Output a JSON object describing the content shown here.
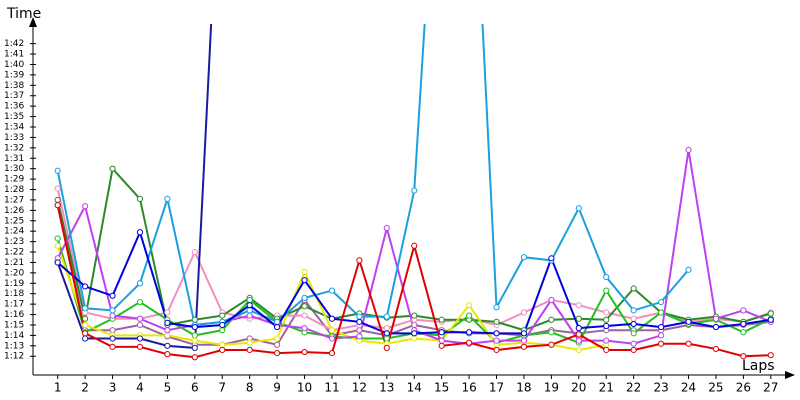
{
  "chart_data": {
    "type": "line",
    "y_title": "Time",
    "x_title": "Laps",
    "x": [
      1,
      2,
      3,
      4,
      5,
      6,
      7,
      8,
      9,
      10,
      11,
      12,
      13,
      14,
      15,
      16,
      17,
      18,
      19,
      20,
      21,
      22,
      23,
      24,
      25,
      26,
      27
    ],
    "xlim": [
      0.1,
      27.7
    ],
    "xticks": [
      1,
      2,
      3,
      4,
      5,
      6,
      7,
      8,
      9,
      10,
      11,
      12,
      13,
      14,
      15,
      16,
      17,
      18,
      19,
      20,
      21,
      22,
      23,
      24,
      25,
      26,
      27
    ],
    "ylim": [
      70.2,
      103.5
    ],
    "yticks": [
      {
        "value": 72,
        "label": "1:12"
      },
      {
        "value": 73,
        "label": "1:13"
      },
      {
        "value": 74,
        "label": "1:14"
      },
      {
        "value": 75,
        "label": "1:15"
      },
      {
        "value": 76,
        "label": "1:16"
      },
      {
        "value": 77,
        "label": "1:17"
      },
      {
        "value": 78,
        "label": "1:18"
      },
      {
        "value": 79,
        "label": "1:19"
      },
      {
        "value": 80,
        "label": "1:20"
      },
      {
        "value": 81,
        "label": "1:21"
      },
      {
        "value": 82,
        "label": "1:22"
      },
      {
        "value": 83,
        "label": "1:23"
      },
      {
        "value": 84,
        "label": "1:24"
      },
      {
        "value": 85,
        "label": "1:25"
      },
      {
        "value": 86,
        "label": "1:26"
      },
      {
        "value": 87,
        "label": "1:27"
      },
      {
        "value": 88,
        "label": "1:28"
      },
      {
        "value": 89,
        "label": "1:29"
      },
      {
        "value": 90,
        "label": "1:30"
      },
      {
        "value": 91,
        "label": "1:31"
      },
      {
        "value": 92,
        "label": "1:32"
      },
      {
        "value": 93,
        "label": "1:33"
      },
      {
        "value": 94,
        "label": "1:34"
      },
      {
        "value": 95,
        "label": "1:35"
      },
      {
        "value": 96,
        "label": "1:36"
      },
      {
        "value": 97,
        "label": "1:37"
      },
      {
        "value": 98,
        "label": "1:38"
      },
      {
        "value": 99,
        "label": "1:39"
      },
      {
        "value": 100,
        "label": "1:40"
      },
      {
        "value": 101,
        "label": "1:41"
      },
      {
        "value": 102,
        "label": "1:42"
      }
    ],
    "series": [
      {
        "color": "#a060a0",
        "values": [
          86.5,
          74.5,
          74.5,
          75.0,
          73.9,
          73.1,
          73.1,
          73.7,
          73.1,
          77.4,
          74.0,
          74.5,
          74.0,
          75.0,
          74.5,
          74.2,
          74.2,
          74.0,
          74.5,
          74.2,
          74.5,
          74.5,
          74.5,
          75.0,
          74.8,
          75.0,
          75.3
        ]
      },
      {
        "color": "#f090c0",
        "values": [
          88.1,
          76.2,
          75.6,
          75.6,
          76.2,
          82.0,
          76.2,
          75.6,
          75.9,
          75.9,
          74.5,
          75.0,
          74.7,
          75.5,
          75.3,
          75.6,
          75.0,
          76.2,
          77.4,
          76.9,
          76.2,
          75.6,
          76.2,
          75.3,
          75.6,
          75.3,
          76.2
        ]
      },
      {
        "color": "#2a8a2a",
        "values": [
          87.0,
          75.6,
          90.0,
          87.1,
          75.0,
          75.5,
          75.9,
          77.6,
          75.6,
          76.8,
          75.6,
          76.1,
          75.7,
          75.9,
          75.5,
          75.5,
          75.3,
          74.5,
          75.5,
          75.6,
          75.5,
          78.5,
          76.2,
          75.5,
          75.8,
          75.3,
          76.1
        ]
      },
      {
        "color": "#20c020",
        "values": [
          83.3,
          74.3,
          75.6,
          77.2,
          75.5,
          74.0,
          74.5,
          77.4,
          75.3,
          74.3,
          73.9,
          73.7,
          73.7,
          74.2,
          74.0,
          75.9,
          73.3,
          74.0,
          74.3,
          73.3,
          78.3,
          74.2,
          76.2,
          75.1,
          75.5,
          74.3,
          75.6
        ]
      },
      {
        "color": "#e8e800",
        "values": [
          82.6,
          75.0,
          74.0,
          74.0,
          74.0,
          73.5,
          73.1,
          73.3,
          73.7,
          80.1,
          74.5,
          73.5,
          73.2,
          73.7,
          73.5,
          76.9,
          73.1,
          73.3,
          73.1,
          72.6,
          73.1,
          null,
          null,
          null,
          null,
          null,
          null
        ]
      },
      {
        "color": "#c040f0",
        "values": [
          81.4,
          86.4,
          75.9,
          75.6,
          74.5,
          75.0,
          75.3,
          75.9,
          75.0,
          74.7,
          73.7,
          73.9,
          84.3,
          74.5,
          73.5,
          73.2,
          73.5,
          73.5,
          77.4,
          73.5,
          73.5,
          73.2,
          74.0,
          91.8,
          75.6,
          76.4,
          75.3
        ]
      },
      {
        "color": "#1aa0e0",
        "values": [
          89.8,
          76.6,
          76.4,
          79.0,
          87.1,
          75.0,
          75.3,
          76.4,
          75.3,
          77.6,
          78.3,
          75.8,
          75.8,
          87.9,
          130,
          130,
          76.7,
          81.5,
          81.2,
          86.2,
          79.6,
          76.4,
          77.2,
          80.3,
          null,
          null,
          null
        ]
      },
      {
        "color": "#0000e0",
        "values": [
          81.0,
          78.7,
          77.8,
          83.9,
          75.2,
          74.8,
          75.0,
          76.9,
          74.8,
          79.3,
          75.6,
          75.3,
          74.2,
          74.2,
          74.3,
          74.3,
          74.2,
          74.2,
          81.4,
          74.7,
          74.9,
          75.1,
          74.8,
          75.3,
          74.8,
          75.1,
          75.5
        ]
      },
      {
        "color": "#1a1aa0",
        "values": [
          81.0,
          73.7,
          73.7,
          73.7,
          73.0,
          72.8,
          125,
          null,
          null,
          null,
          null,
          null,
          null,
          null,
          null,
          null,
          null,
          null,
          null,
          null,
          null,
          null,
          null,
          null,
          null,
          null,
          null
        ]
      },
      {
        "color": "#e00000",
        "values": [
          86.5,
          74.2,
          72.9,
          72.9,
          72.2,
          71.9,
          72.6,
          72.6,
          72.3,
          72.4,
          72.3,
          81.2,
          72.8,
          82.6,
          73.0,
          73.3,
          72.6,
          72.9,
          73.1,
          74.1,
          72.6,
          72.6,
          73.2,
          73.2,
          72.7,
          72.0,
          72.1
        ]
      }
    ]
  }
}
